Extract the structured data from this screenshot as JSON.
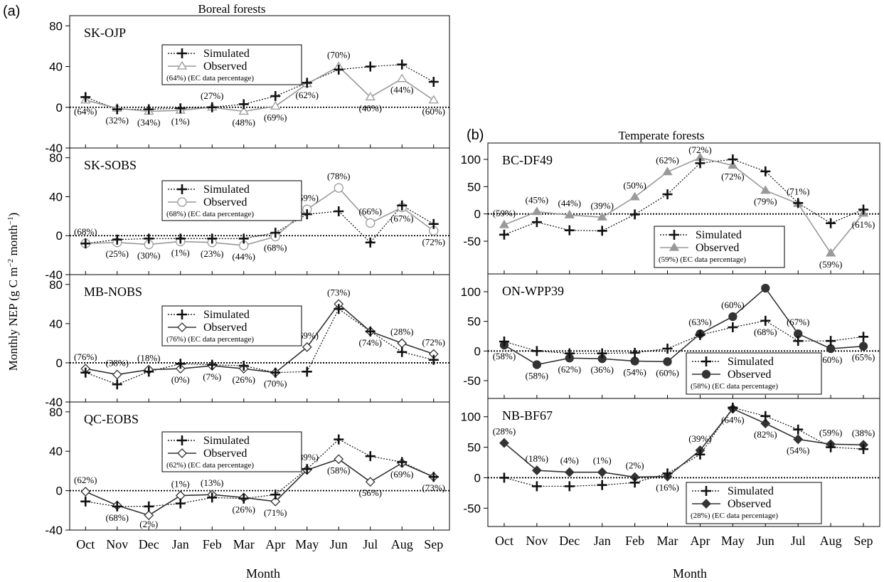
{
  "figure": {
    "y_axis_label_main": "Monthly NEP (g C m",
    "y_axis_label_sup1": "−2",
    "y_axis_label_mid": " month",
    "y_axis_label_sup2": "−1",
    "y_axis_label_end": ")",
    "legend_simulated": "Simulated",
    "legend_observed": "Observed",
    "legend_note_suffix": "(EC data percentage)",
    "panel_a": {
      "letter": "(a)",
      "title": "Boreal forests",
      "xlabel": "Month"
    },
    "panel_b": {
      "letter": "(b)",
      "title": "Temperate forests",
      "xlabel": "Month"
    },
    "colors": {
      "simulated": "#111111",
      "observed_gray": "#999999",
      "observed_dark": "#333333",
      "zero_line": "#000000"
    }
  },
  "chart_data": [
    {
      "type": "line",
      "site": "SK-OJP",
      "group": "a",
      "categories": [
        "Oct",
        "Nov",
        "Dec",
        "Jan",
        "Feb",
        "Mar",
        "Apr",
        "May",
        "Jun",
        "Jul",
        "Aug",
        "Sep"
      ],
      "ylim": [
        -40,
        90
      ],
      "yticks": [
        -40,
        0,
        40,
        80
      ],
      "series": [
        {
          "name": "Simulated",
          "marker": "plus",
          "values": [
            10,
            -2,
            -2,
            -1,
            0,
            3,
            11,
            24,
            37,
            40,
            42,
            25
          ]
        },
        {
          "name": "Observed",
          "marker": "triangle-open",
          "values": [
            7,
            -1,
            -4,
            -3,
            0,
            -4,
            1,
            23,
            40,
            10,
            28,
            7
          ]
        }
      ],
      "legend_note_pct": "(64%)",
      "ec_labels": [
        "(64%)",
        "(32%)",
        "(34%)",
        "(1%)",
        "(27%)",
        "(48%)",
        "(69%)",
        "(62%)",
        "(70%)",
        "(40%)",
        "(44%)",
        "(60%)"
      ],
      "label_pos": [
        "below",
        "below",
        "below",
        "below",
        "above",
        "below",
        "below",
        "below",
        "above",
        "below",
        "below",
        "below"
      ]
    },
    {
      "type": "line",
      "site": "SK-SOBS",
      "group": "a",
      "categories": [
        "Oct",
        "Nov",
        "Dec",
        "Jan",
        "Feb",
        "Mar",
        "Apr",
        "May",
        "Jun",
        "Jul",
        "Aug",
        "Sep"
      ],
      "ylim": [
        -40,
        90
      ],
      "yticks": [
        -40,
        0,
        40,
        80
      ],
      "series": [
        {
          "name": "Simulated",
          "marker": "plus",
          "values": [
            -8,
            -4,
            -3,
            -3,
            -3,
            -3,
            3,
            22,
            25,
            -7,
            31,
            12
          ]
        },
        {
          "name": "Observed",
          "marker": "circle-open",
          "values": [
            -8,
            -7,
            -9,
            -6,
            -7,
            -10,
            -1,
            27,
            49,
            13,
            29,
            5
          ]
        }
      ],
      "legend_note_pct": "(68%)",
      "ec_labels": [
        "(68%)",
        "(25%)",
        "(30%)",
        "(1%)",
        "(23%)",
        "(44%)",
        "(68%)",
        "(59%)",
        "(78%)",
        "(66%)",
        "(67%)",
        "(72%)"
      ],
      "label_pos": [
        "above",
        "below",
        "below",
        "below",
        "below",
        "below",
        "below",
        "above",
        "above",
        "above",
        "below",
        "below"
      ]
    },
    {
      "type": "line",
      "site": "MB-NOBS",
      "group": "a",
      "categories": [
        "Oct",
        "Nov",
        "Dec",
        "Jan",
        "Feb",
        "Mar",
        "Apr",
        "May",
        "Jun",
        "Jul",
        "Aug",
        "Sep"
      ],
      "ylim": [
        -40,
        90
      ],
      "yticks": [
        -40,
        0,
        40,
        80
      ],
      "series": [
        {
          "name": "Simulated",
          "marker": "plus",
          "values": [
            -10,
            -22,
            -9,
            -1,
            -2,
            -3,
            -10,
            -9,
            55,
            32,
            11,
            3
          ]
        },
        {
          "name": "Observed",
          "marker": "diamond-open",
          "values": [
            -6,
            -12,
            -7,
            -6,
            -3,
            -6,
            -10,
            16,
            60,
            32,
            20,
            9
          ]
        }
      ],
      "legend_note_pct": "(76%)",
      "ec_labels": [
        "(76%)",
        "(38%)",
        "(18%)",
        "(0%)",
        "(7%)",
        "(26%)",
        "(70%)",
        "(69%)",
        "(73%)",
        "(74%)",
        "(28%)",
        "(72%)"
      ],
      "label_pos": [
        "above",
        "above",
        "above",
        "below",
        "below",
        "below",
        "below",
        "above",
        "above",
        "below",
        "above",
        "above"
      ]
    },
    {
      "type": "line",
      "site": "QC-EOBS",
      "group": "a",
      "categories": [
        "Oct",
        "Nov",
        "Dec",
        "Jan",
        "Feb",
        "Mar",
        "Apr",
        "May",
        "Jun",
        "Jul",
        "Aug",
        "Sep"
      ],
      "ylim": [
        -40,
        90
      ],
      "yticks": [
        -40,
        0,
        40,
        80
      ],
      "series": [
        {
          "name": "Simulated",
          "marker": "plus",
          "values": [
            -11,
            -16,
            -16,
            -13,
            -7,
            -8,
            -4,
            22,
            52,
            35,
            29,
            14
          ]
        },
        {
          "name": "Observed",
          "marker": "diamond-open",
          "values": [
            -1,
            -15,
            -25,
            -5,
            -4,
            -7,
            -11,
            21,
            32,
            9,
            28,
            14
          ]
        }
      ],
      "legend_note_pct": "(62%)",
      "ec_labels": [
        "(62%)",
        "(68%)",
        "(2%)",
        "(1%)",
        "(13%)",
        "(26%)",
        "(71%)",
        "(39%)",
        "(58%)",
        "(56%)",
        "(69%)",
        "(73%)"
      ],
      "label_pos": [
        "above",
        "below",
        "below",
        "above",
        "above",
        "below",
        "below",
        "above",
        "below",
        "below",
        "below",
        "below"
      ]
    },
    {
      "type": "line",
      "site": "BC-DF49",
      "group": "b",
      "categories": [
        "Oct",
        "Nov",
        "Dec",
        "Jan",
        "Feb",
        "Mar",
        "Apr",
        "May",
        "Jun",
        "Jul",
        "Aug",
        "Sep"
      ],
      "ylim": [
        -110,
        130
      ],
      "yticks": [
        -50,
        0,
        50,
        100
      ],
      "series": [
        {
          "name": "Simulated",
          "marker": "plus",
          "values": [
            -38,
            -15,
            -30,
            -31,
            -1,
            36,
            93,
            100,
            78,
            20,
            -17,
            8
          ]
        },
        {
          "name": "Observed",
          "marker": "triangle-filled",
          "values": [
            -20,
            4,
            -2,
            -6,
            31,
            77,
            103,
            89,
            43,
            19,
            -72,
            1
          ]
        }
      ],
      "legend_note_pct": "(59%)",
      "ec_labels": [
        "(59%)",
        "(45%)",
        "(44%)",
        "(39%)",
        "(50%)",
        "(62%)",
        "(72%)",
        "(72%)",
        "(79%)",
        "(71%)",
        "(59%)",
        "(61%)"
      ],
      "label_pos": [
        "above",
        "above",
        "above",
        "above",
        "above",
        "above",
        "above",
        "below",
        "below",
        "above",
        "below",
        "below"
      ]
    },
    {
      "type": "line",
      "site": "ON-WPP39",
      "group": "b",
      "categories": [
        "Oct",
        "Nov",
        "Dec",
        "Jan",
        "Feb",
        "Mar",
        "Apr",
        "May",
        "Jun",
        "Jul",
        "Aug",
        "Sep"
      ],
      "ylim": [
        -80,
        130
      ],
      "yticks": [
        -50,
        0,
        50,
        100
      ],
      "series": [
        {
          "name": "Simulated",
          "marker": "plus",
          "values": [
            16,
            0,
            -4,
            -4,
            -3,
            4,
            27,
            40,
            51,
            17,
            17,
            24
          ]
        },
        {
          "name": "Observed",
          "marker": "circle-filled",
          "values": [
            10,
            -23,
            -12,
            -13,
            -17,
            -18,
            29,
            58,
            106,
            29,
            4,
            8
          ]
        }
      ],
      "legend_note_pct": "(58%)",
      "ec_labels": [
        "(58%)",
        "(58%)",
        "(62%)",
        "(36%)",
        "(54%)",
        "(60%)",
        "(63%)",
        "(60%)",
        "(68%)",
        "(67%)",
        "(60%)",
        "(65%)"
      ],
      "label_pos": [
        "below",
        "below",
        "below",
        "below",
        "below",
        "below",
        "above",
        "above",
        "below",
        "above",
        "below",
        "below"
      ]
    },
    {
      "type": "line",
      "site": "NB-BF67",
      "group": "b",
      "categories": [
        "Oct",
        "Nov",
        "Dec",
        "Jan",
        "Feb",
        "Mar",
        "Apr",
        "May",
        "Jun",
        "Jul",
        "Aug",
        "Sep"
      ],
      "ylim": [
        -80,
        130
      ],
      "yticks": [
        -50,
        0,
        50,
        100
      ],
      "series": [
        {
          "name": "Simulated",
          "marker": "plus",
          "values": [
            0,
            -14,
            -14,
            -12,
            -8,
            7,
            38,
            115,
            101,
            79,
            50,
            47
          ]
        },
        {
          "name": "Observed",
          "marker": "diamond-filled",
          "values": [
            57,
            12,
            9,
            9,
            1,
            2,
            45,
            113,
            89,
            63,
            55,
            54
          ]
        }
      ],
      "legend_note_pct": "(28%)",
      "ec_labels": [
        "(28%)",
        "(18%)",
        "(4%)",
        "(1%)",
        "(2%)",
        "(16%)",
        "(39%)",
        "(64%)",
        "(82%)",
        "(54%)",
        "(59%)",
        "(38%)"
      ],
      "label_pos": [
        "above",
        "above",
        "above",
        "above",
        "above",
        "below",
        "above",
        "below",
        "below",
        "below",
        "above",
        "above"
      ]
    }
  ]
}
